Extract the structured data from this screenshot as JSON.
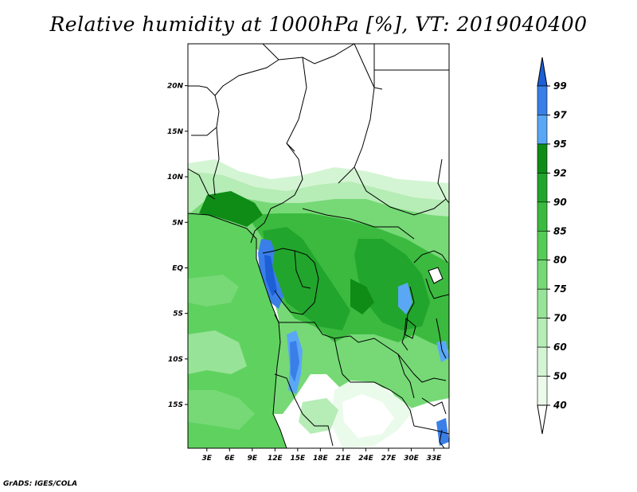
{
  "title": "Relative humidity at 1000hPa [%], VT: 2019040400",
  "credit": "GrADS: IGES/COLA",
  "map": {
    "lon_labels": [
      "3E",
      "6E",
      "9E",
      "12E",
      "15E",
      "18E",
      "21E",
      "24E",
      "27E",
      "30E",
      "33E"
    ],
    "lon_values": [
      3,
      6,
      9,
      12,
      15,
      18,
      21,
      24,
      27,
      30,
      33
    ],
    "lat_labels": [
      "20N",
      "15N",
      "10N",
      "5N",
      "EQ",
      "5S",
      "10S",
      "15S"
    ],
    "lat_values": [
      20,
      15,
      10,
      5,
      0,
      -5,
      -10,
      -15
    ],
    "lon_range": [
      0.5,
      35
    ],
    "lat_range": [
      -19.8,
      24.6
    ]
  },
  "colorbar": {
    "levels": [
      "99",
      "97",
      "95",
      "92",
      "90",
      "85",
      "80",
      "75",
      "70",
      "60",
      "50",
      "40"
    ],
    "colors": [
      "#1c5fd6",
      "#3a7fe8",
      "#5aa8f5",
      "#0e8c16",
      "#22a52c",
      "#3bba3f",
      "#55cc55",
      "#76d976",
      "#97e397",
      "#b6ecb6",
      "#d4f5d4",
      "#ebfbeb",
      "#ffffff"
    ]
  },
  "palette": {
    "wet": "#1e9b26",
    "mid": "#55cc55",
    "light": "#b6ecb6",
    "ocean": "#5fd15f",
    "blue": "#3a7fe8"
  }
}
